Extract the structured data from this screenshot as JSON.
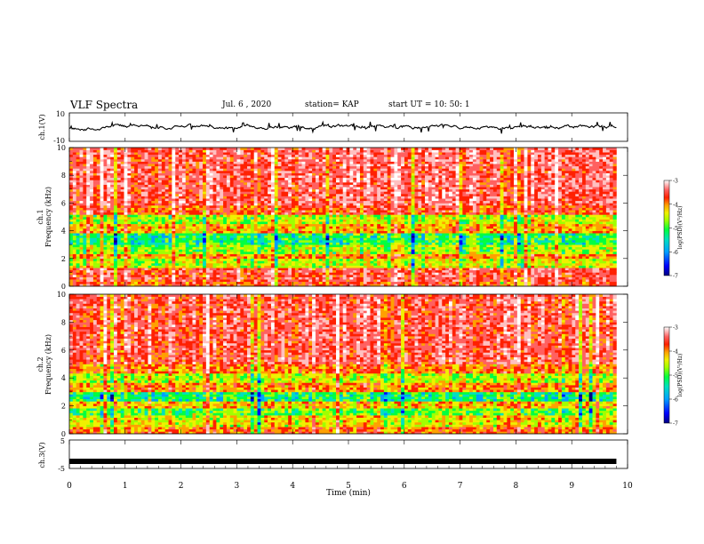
{
  "header": {
    "title": "VLF Spectra",
    "date": "Jul. 6 , 2020",
    "station": "station= KAP",
    "start": "start UT = 10: 50: 1"
  },
  "colors": {
    "colormap": [
      "#000080",
      "#0000ff",
      "#00a0ff",
      "#00e0c0",
      "#00ff40",
      "#a0ff00",
      "#f0f000",
      "#ffa000",
      "#ff2000",
      "#ff6060",
      "#ffc0c0",
      "#ffffff"
    ]
  },
  "chart_data": [
    {
      "type": "line",
      "panel": "ch1-waveform",
      "ylabel": "ch.1(V)",
      "ylim": [
        -10,
        10
      ],
      "ytick_labels": [
        "10",
        "-10"
      ],
      "xlim": [
        0,
        10
      ],
      "trace_range_approx": [
        -3,
        3
      ]
    },
    {
      "type": "heatmap",
      "panel": "ch1-spectrogram",
      "ylabel_top": "ch.1",
      "ylabel": "Frequency (kHz)",
      "ylim": [
        0,
        10
      ],
      "ytick_labels": [
        "0",
        "2",
        "4",
        "6",
        "8",
        "10"
      ],
      "xlim": [
        0,
        9.8
      ],
      "colorbar": {
        "label": "log(PSD)(V²/Hz)",
        "range": [
          -7,
          -3
        ],
        "tick_labels": [
          "-3",
          "-4",
          "-5",
          "-6",
          "-7"
        ]
      },
      "bands_kHz": [
        {
          "from": 0.0,
          "to": 0.3,
          "level": -4.2
        },
        {
          "from": 0.3,
          "to": 1.3,
          "level": -4.0
        },
        {
          "from": 1.3,
          "to": 2.0,
          "level": -5.0
        },
        {
          "from": 2.0,
          "to": 2.4,
          "level": -4.5
        },
        {
          "from": 2.4,
          "to": 3.0,
          "level": -5.2
        },
        {
          "from": 3.0,
          "to": 3.8,
          "level": -5.6
        },
        {
          "from": 3.8,
          "to": 4.5,
          "level": -4.6
        },
        {
          "from": 4.5,
          "to": 5.2,
          "level": -5.1
        },
        {
          "from": 5.2,
          "to": 5.8,
          "level": -4.2
        },
        {
          "from": 5.8,
          "to": 10.0,
          "level": -3.9
        }
      ]
    },
    {
      "type": "heatmap",
      "panel": "ch2-spectrogram",
      "ylabel_top": "ch.2",
      "ylabel": "Frequency (kHz)",
      "ylim": [
        0,
        10
      ],
      "ytick_labels": [
        "0",
        "2",
        "4",
        "6",
        "8",
        "10"
      ],
      "xlim": [
        0,
        9.8
      ],
      "colorbar": {
        "label": "log(PSD)(V²/Hz)",
        "range": [
          -7,
          -3
        ],
        "tick_labels": [
          "-3",
          "-4",
          "-5",
          "-6",
          "-7"
        ]
      },
      "bands_kHz": [
        {
          "from": 0.0,
          "to": 0.5,
          "level": -4.3
        },
        {
          "from": 0.5,
          "to": 1.3,
          "level": -4.8
        },
        {
          "from": 1.3,
          "to": 1.9,
          "level": -5.3
        },
        {
          "from": 1.9,
          "to": 2.3,
          "level": -4.6
        },
        {
          "from": 2.3,
          "to": 3.0,
          "level": -5.6
        },
        {
          "from": 3.0,
          "to": 3.7,
          "level": -4.4
        },
        {
          "from": 3.7,
          "to": 4.3,
          "level": -5.0
        },
        {
          "from": 4.3,
          "to": 5.0,
          "level": -4.3
        },
        {
          "from": 5.0,
          "to": 10.0,
          "level": -3.9
        }
      ]
    },
    {
      "type": "line",
      "panel": "ch3-signal",
      "ylabel": "ch.3(V)",
      "ylim": [
        -5,
        5
      ],
      "ytick_labels": [
        "5",
        "-5"
      ],
      "xlim": [
        0,
        10
      ],
      "trace_level_approx": -2.5,
      "xlabel": "Time (min)",
      "xtick_labels": [
        "0",
        "1",
        "2",
        "3",
        "4",
        "5",
        "6",
        "7",
        "8",
        "9",
        "10"
      ]
    }
  ]
}
